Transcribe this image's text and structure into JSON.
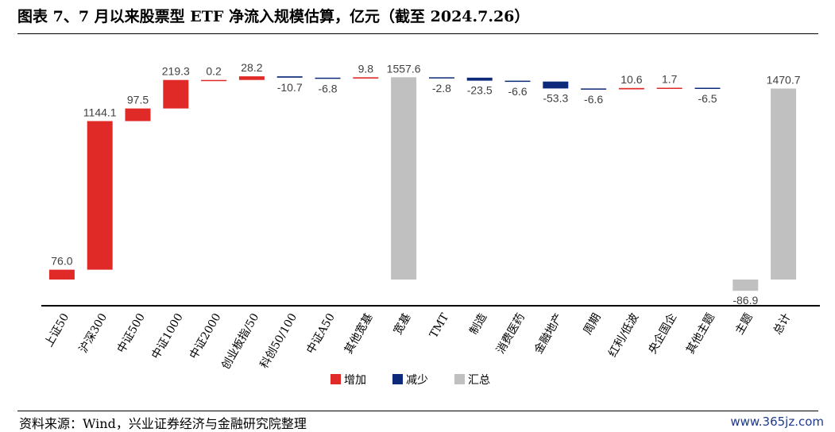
{
  "header": {
    "title": "图表 7、7 月以来股票型 ETF 净流入规模估算，亿元（截至 2024.7.26）"
  },
  "footer": {
    "source": "资料来源：Wind，兴业证券经济与金融研究院整理",
    "watermark": "www.365jz.com"
  },
  "colors": {
    "increase": "#e02a27",
    "decrease": "#0d2a7a",
    "total": "#c0c0c0",
    "axis": "#000000"
  },
  "chart_data": {
    "type": "waterfall",
    "title": "7 月以来股票型 ETF 净流入规模估算，亿元（截至 2024.7.26）",
    "xlabel": "",
    "ylabel": "",
    "ylim": [
      -150,
      2250
    ],
    "categories": [
      "上证50",
      "沪深300",
      "中证500",
      "中证1000",
      "中证2000",
      "创业板指/50",
      "科创50/100",
      "中证A50",
      "其他宽基",
      "宽基",
      "TMT",
      "制造",
      "消费医药",
      "金融地产",
      "周期",
      "红利/低波",
      "央企国企",
      "其他主题",
      "主题",
      "总计"
    ],
    "values": [
      76.0,
      1144.1,
      97.5,
      219.3,
      0.2,
      28.2,
      -10.7,
      -6.8,
      9.8,
      1557.6,
      -2.8,
      -23.5,
      -6.6,
      -53.3,
      -6.6,
      10.6,
      1.7,
      -6.5,
      -86.9,
      1470.7
    ],
    "value_labels": [
      "76.0",
      "1144.1",
      "97.5",
      "219.3",
      "0.2",
      "28.2",
      "-10.7",
      "-6.8",
      "9.8",
      "1557.6",
      "-2.8",
      "-23.5",
      "-6.6",
      "-53.3",
      "-6.6",
      "10.6",
      "1.7",
      "-6.5",
      "-86.9",
      "1470.7"
    ],
    "kinds": [
      "step",
      "step",
      "step",
      "step",
      "step",
      "step",
      "step",
      "step",
      "step",
      "total",
      "step",
      "step",
      "step",
      "step",
      "step",
      "step",
      "step",
      "step",
      "total",
      "total"
    ],
    "legend": [
      {
        "key": "increase",
        "label": "增加"
      },
      {
        "key": "decrease",
        "label": "减少"
      },
      {
        "key": "total",
        "label": "汇总"
      }
    ],
    "legend_position": "bottom-center",
    "grid": false
  }
}
